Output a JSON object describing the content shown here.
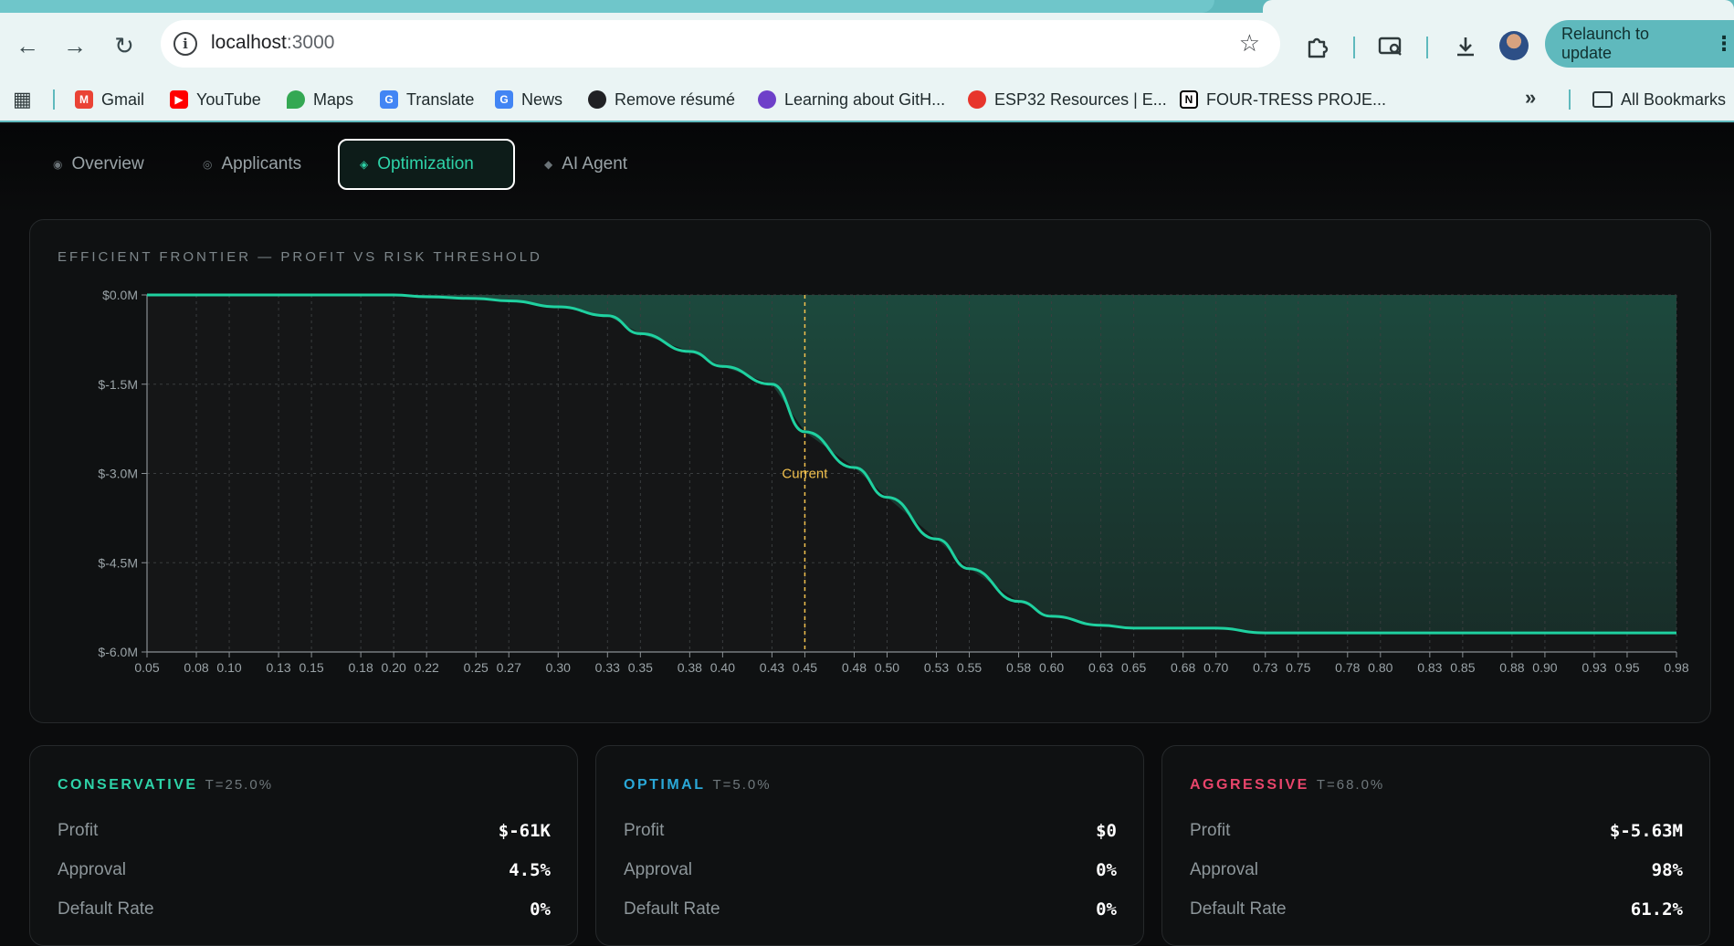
{
  "browser": {
    "url_host": "localhost",
    "url_port": ":3000",
    "relaunch_label": "Relaunch to update",
    "bookmarks": [
      {
        "label": "Gmail",
        "icon": "gmail-icon",
        "color": "#ea4335"
      },
      {
        "label": "YouTube",
        "icon": "youtube-icon",
        "color": "#ff0000"
      },
      {
        "label": "Maps",
        "icon": "maps-icon",
        "color": "#34a853"
      },
      {
        "label": "Translate",
        "icon": "translate-icon",
        "color": "#4285f4"
      },
      {
        "label": "News",
        "icon": "news-icon",
        "color": "#4285f4"
      },
      {
        "label": "Remove résumé",
        "icon": "globe-icon",
        "color": "#202124"
      },
      {
        "label": "Learning about GitH...",
        "icon": "github-icon",
        "color": "#6e40c9"
      },
      {
        "label": "ESP32 Resources | E...",
        "icon": "espressif-icon",
        "color": "#e7352c"
      },
      {
        "label": "FOUR-TRESS PROJE...",
        "icon": "notion-icon",
        "color": "#000000"
      }
    ],
    "all_bookmarks_label": "All Bookmarks"
  },
  "tabs": [
    {
      "label": "Overview",
      "active": false
    },
    {
      "label": "Applicants",
      "active": false
    },
    {
      "label": "Optimization",
      "active": true
    },
    {
      "label": "AI Agent",
      "active": false
    }
  ],
  "frontier": {
    "title": "EFFICIENT FRONTIER — PROFIT VS RISK THRESHOLD"
  },
  "chart_data": {
    "type": "area",
    "title": "EFFICIENT FRONTIER — PROFIT VS RISK THRESHOLD",
    "xlabel": "",
    "ylabel": "",
    "x_ticks": [
      "0.05",
      "0.08",
      "0.10",
      "0.13",
      "0.15",
      "0.18",
      "0.20",
      "0.22",
      "0.25",
      "0.27",
      "0.30",
      "0.33",
      "0.35",
      "0.38",
      "0.40",
      "0.43",
      "0.45",
      "0.48",
      "0.50",
      "0.53",
      "0.55",
      "0.58",
      "0.60",
      "0.63",
      "0.65",
      "0.68",
      "0.70",
      "0.73",
      "0.75",
      "0.78",
      "0.80",
      "0.83",
      "0.85",
      "0.88",
      "0.90",
      "0.93",
      "0.95",
      "0.98"
    ],
    "y_ticks": [
      "$0.0M",
      "$-1.5M",
      "$-3.0M",
      "$-4.5M",
      "$-6.0M"
    ],
    "y_tick_values": [
      0,
      -1.5,
      -3.0,
      -4.5,
      -6.0
    ],
    "xlim": [
      0.05,
      0.98
    ],
    "ylim": [
      -6.0,
      0.0
    ],
    "grid": true,
    "line_color": "#1fd1a0",
    "current_marker": {
      "x": 0.45,
      "label": "Current",
      "color": "#f2c14e"
    },
    "series": [
      {
        "x": [
          0.05,
          0.08,
          0.1,
          0.13,
          0.15,
          0.18,
          0.2,
          0.22,
          0.25,
          0.27,
          0.3,
          0.33,
          0.35,
          0.38,
          0.4,
          0.43,
          0.45,
          0.48,
          0.5,
          0.53,
          0.55,
          0.58,
          0.6,
          0.63,
          0.65,
          0.68,
          0.7,
          0.73,
          0.75,
          0.78,
          0.8,
          0.83,
          0.85,
          0.88,
          0.9,
          0.93,
          0.95,
          0.98
        ],
        "values": [
          0,
          0,
          0,
          0,
          0,
          0,
          0,
          -0.03,
          -0.06,
          -0.1,
          -0.2,
          -0.35,
          -0.65,
          -0.95,
          -1.2,
          -1.5,
          -2.3,
          -2.9,
          -3.4,
          -4.1,
          -4.6,
          -5.15,
          -5.4,
          -5.55,
          -5.6,
          -5.6,
          -5.6,
          -5.68,
          -5.68,
          -5.68,
          -5.68,
          -5.68,
          -5.68,
          -5.68,
          -5.68,
          -5.68,
          -5.68,
          -5.68
        ]
      }
    ]
  },
  "cards": [
    {
      "name": "CONSERVATIVE",
      "threshold": "T=25.0%",
      "color": "#2ed3a8",
      "rows": [
        {
          "label": "Profit",
          "value": "$-61K"
        },
        {
          "label": "Approval",
          "value": "4.5%"
        },
        {
          "label": "Default Rate",
          "value": "0%"
        }
      ]
    },
    {
      "name": "OPTIMAL",
      "threshold": "T=5.0%",
      "color": "#2aa8d8",
      "rows": [
        {
          "label": "Profit",
          "value": "$0"
        },
        {
          "label": "Approval",
          "value": "0%"
        },
        {
          "label": "Default Rate",
          "value": "0%"
        }
      ]
    },
    {
      "name": "AGGRESSIVE",
      "threshold": "T=68.0%",
      "color": "#e8456b",
      "rows": [
        {
          "label": "Profit",
          "value": "$-5.63M"
        },
        {
          "label": "Approval",
          "value": "98%"
        },
        {
          "label": "Default Rate",
          "value": "61.2%"
        }
      ]
    }
  ]
}
